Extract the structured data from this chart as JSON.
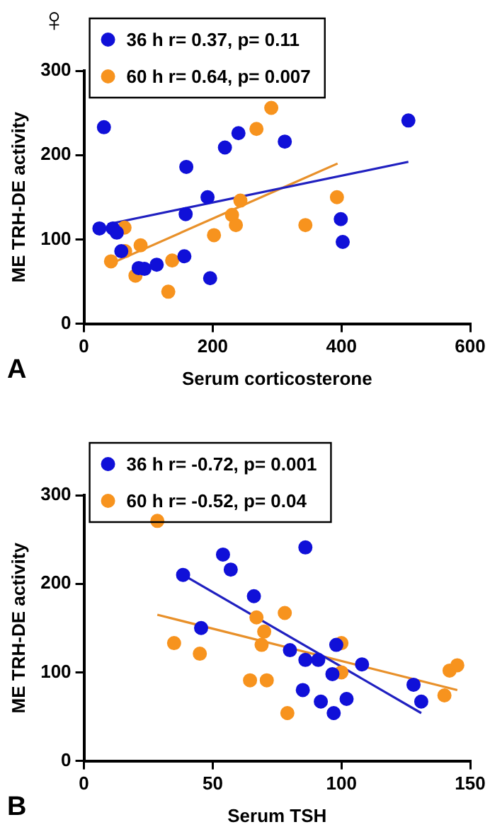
{
  "chart_data": [
    {
      "type": "scatter",
      "xlabel": "Serum corticosterone",
      "ylabel": "ME TRH-DE activity",
      "annotations": [
        "♀",
        "A"
      ],
      "xlim": [
        0,
        600
      ],
      "xticks": [
        0,
        200,
        400,
        600
      ],
      "ylim": [
        0,
        300
      ],
      "yticks": [
        0,
        100,
        200,
        300
      ],
      "grid": false,
      "legend": "top left",
      "series": [
        {
          "name": "36 h r= 0.37, p= 0.11",
          "marker": "circle",
          "color": "#1010d8",
          "x": [
            24,
            31,
            45,
            51,
            58,
            85,
            94,
            113,
            159,
            158,
            156,
            192,
            196,
            219,
            240,
            312,
            399,
            402,
            504
          ],
          "values": [
            113,
            233,
            113,
            108,
            86,
            66,
            65,
            70,
            186,
            130,
            80,
            150,
            54,
            209,
            226,
            216,
            124,
            97,
            241
          ]
        },
        {
          "name": "60 h r= 0.64, p= 0.007",
          "marker": "circle",
          "color": "#f7931e",
          "x": [
            42,
            63,
            64,
            88,
            80,
            131,
            137,
            202,
            230,
            236,
            243,
            268,
            291,
            344,
            393
          ],
          "values": [
            74,
            114,
            86,
            93,
            57,
            38,
            75,
            105,
            129,
            117,
            146,
            231,
            256,
            117,
            150
          ]
        },
        {
          "type": "line",
          "marker": "none",
          "color": "#2020c0",
          "x": [
            37,
            504
          ],
          "values": [
            118,
            192
          ]
        },
        {
          "type": "line",
          "marker": "none",
          "color": "#e8902a",
          "x": [
            35,
            394
          ],
          "values": [
            69,
            190
          ]
        }
      ]
    },
    {
      "type": "scatter",
      "xlabel": "Serum TSH",
      "ylabel": "ME TRH-DE activity",
      "annotations": [
        "B"
      ],
      "xlim": [
        0,
        150
      ],
      "xticks": [
        0,
        50,
        100,
        150
      ],
      "ylim": [
        0,
        300
      ],
      "yticks": [
        0,
        100,
        200,
        300
      ],
      "grid": false,
      "legend": "top left",
      "series": [
        {
          "name": "36 h r= -0.72, p= 0.001",
          "marker": "circle",
          "color": "#1010d8",
          "x": [
            38.5,
            45.5,
            54,
            57,
            66,
            86,
            80,
            86,
            91,
            85,
            92,
            97,
            96.5,
            98,
            102,
            108,
            128,
            131
          ],
          "values": [
            210,
            150,
            233,
            216,
            186,
            241,
            125,
            114,
            114,
            80,
            67,
            54,
            98,
            131,
            70,
            109,
            86,
            67
          ]
        },
        {
          "name": "60 h r= -0.52, p= 0.04",
          "marker": "circle",
          "color": "#f7931e",
          "x": [
            28.5,
            35,
            45,
            64.5,
            67,
            70,
            69,
            71,
            78,
            79,
            100,
            100,
            140,
            142,
            145
          ],
          "values": [
            271,
            133,
            121,
            91,
            162,
            146,
            131,
            91,
            167,
            54,
            133,
            100,
            74,
            102,
            108
          ]
        },
        {
          "type": "line",
          "marker": "none",
          "color": "#2020c0",
          "x": [
            38.5,
            131
          ],
          "values": [
            210,
            54
          ]
        },
        {
          "type": "line",
          "marker": "none",
          "color": "#e8902a",
          "x": [
            28.5,
            145
          ],
          "values": [
            165,
            80
          ]
        }
      ]
    }
  ]
}
